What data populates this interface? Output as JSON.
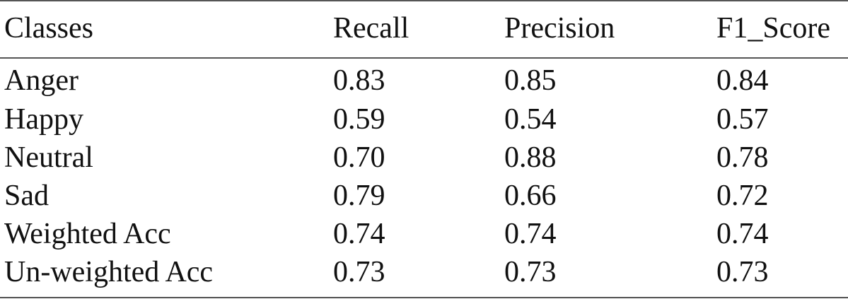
{
  "table": {
    "headers": [
      "Classes",
      "Recall",
      "Precision",
      "F1_Score"
    ],
    "rows": [
      [
        "Anger",
        "0.83",
        "0.85",
        "0.84"
      ],
      [
        "Happy",
        "0.59",
        "0.54",
        "0.57"
      ],
      [
        "Neutral",
        "0.70",
        "0.88",
        "0.78"
      ],
      [
        "Sad",
        "0.79",
        "0.66",
        "0.72"
      ],
      [
        "Weighted Acc",
        "0.74",
        "0.74",
        "0.74"
      ],
      [
        "Un-weighted Acc",
        "0.73",
        "0.73",
        "0.73"
      ]
    ]
  }
}
